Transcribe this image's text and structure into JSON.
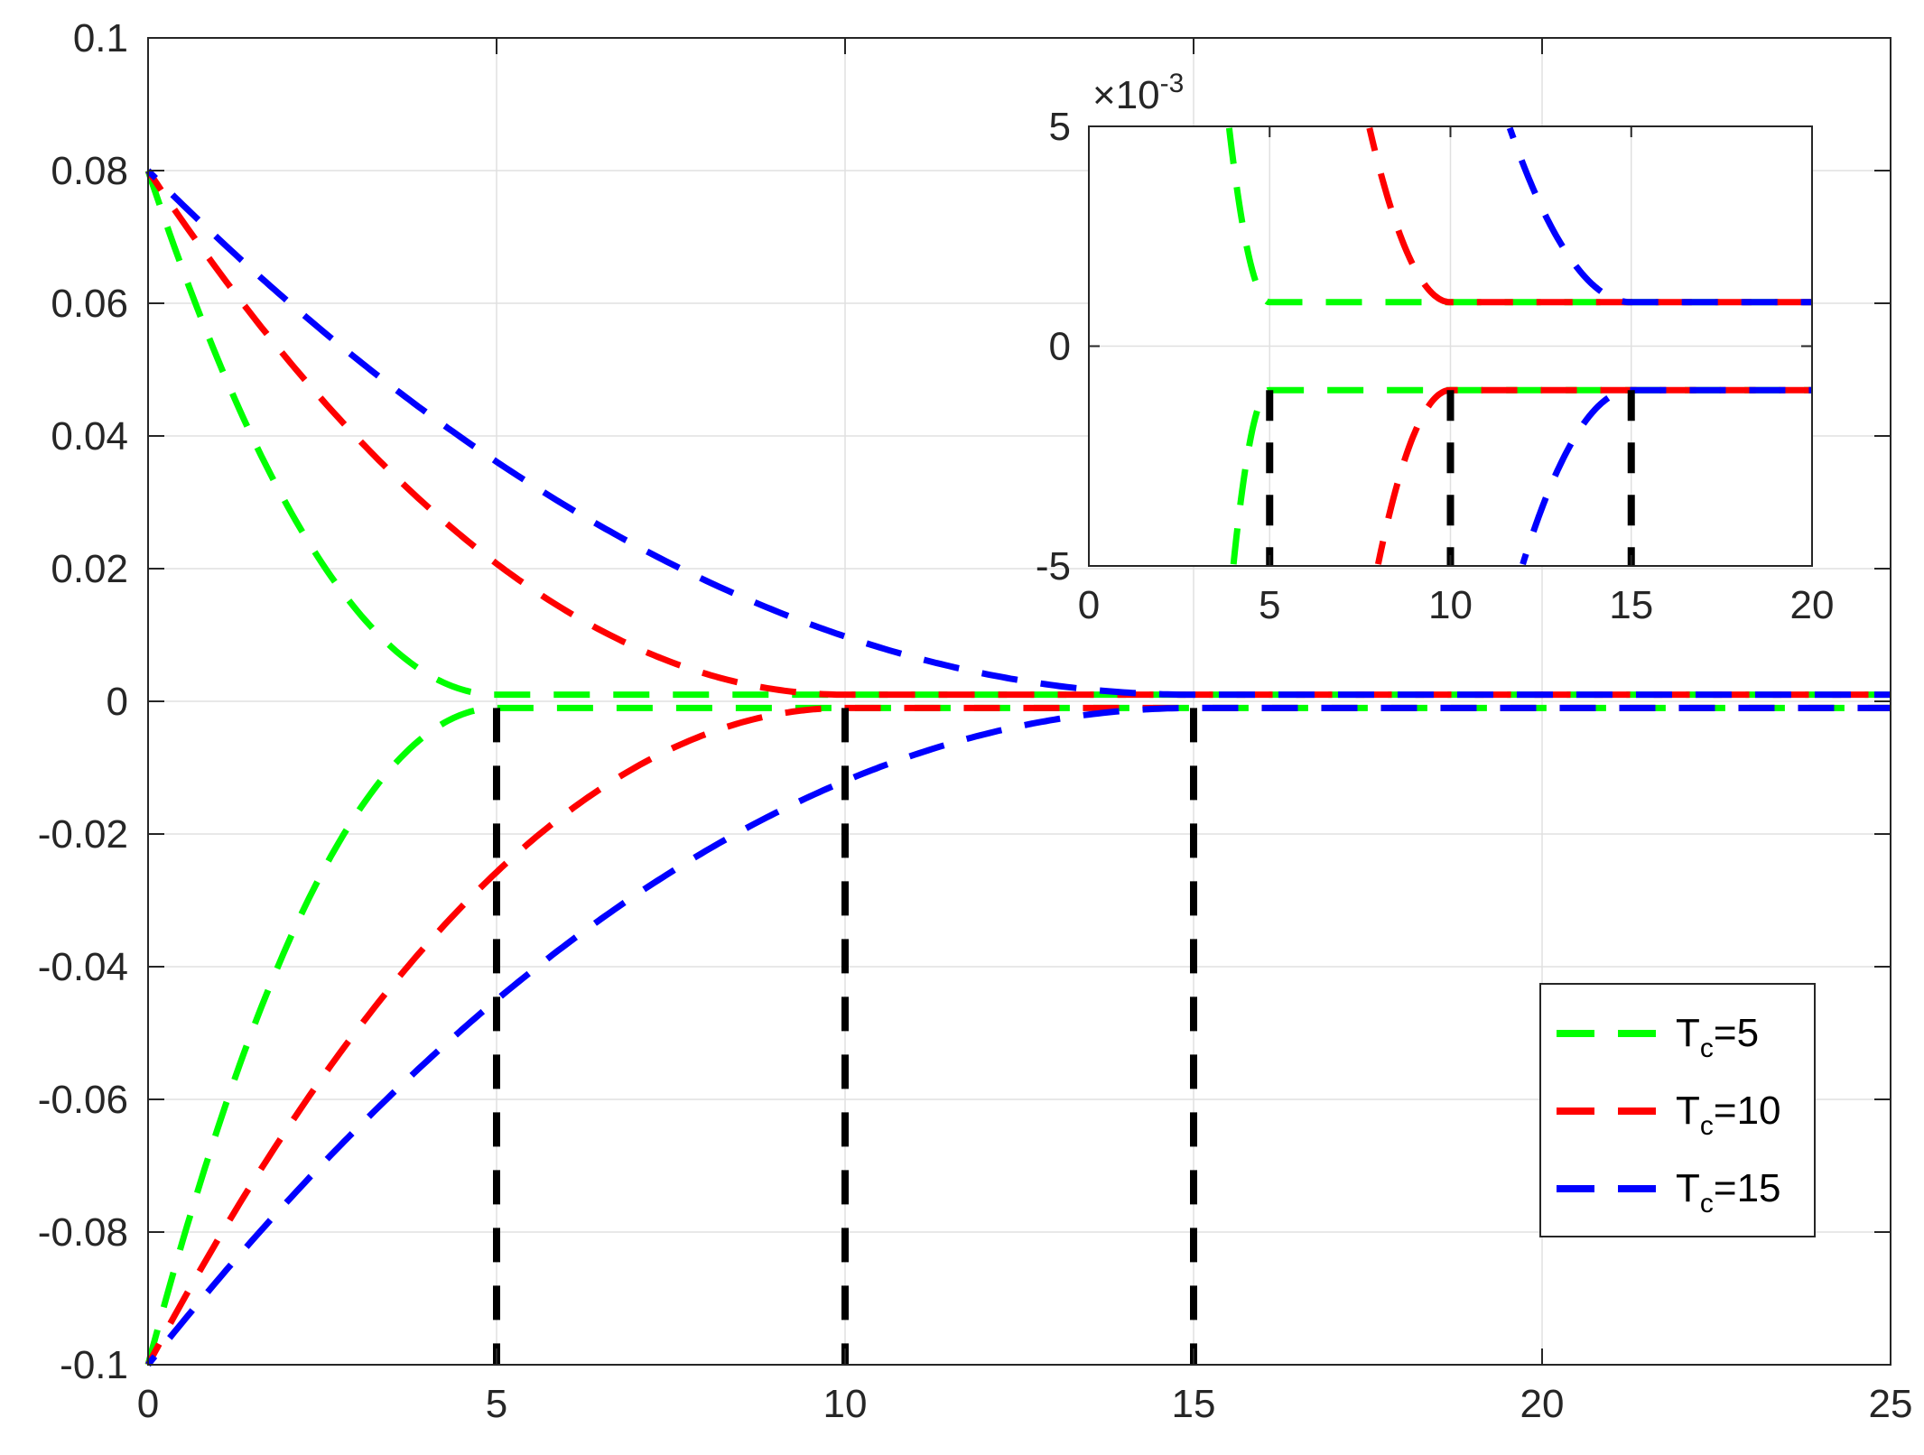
{
  "chart_data": [
    {
      "type": "line",
      "xlim": [
        0,
        25
      ],
      "ylim": [
        -0.1,
        0.1
      ],
      "xticks": [
        0,
        5,
        10,
        15,
        20,
        25
      ],
      "xtick_labels": [
        "0",
        "5",
        "10",
        "15",
        "20",
        "25"
      ],
      "yticks": [
        -0.1,
        -0.08,
        -0.06,
        -0.04,
        -0.02,
        0,
        0.02,
        0.04,
        0.06,
        0.08,
        0.1
      ],
      "ytick_labels": [
        "-0.1",
        "-0.08",
        "-0.06",
        "-0.04",
        "-0.02",
        "0",
        "0.02",
        "0.04",
        "0.06",
        "0.08",
        "0.1"
      ],
      "grid": true,
      "legend_position": "bottom-right",
      "series": [
        {
          "name": "T_c=5",
          "Tc": 5,
          "color": "#00ff00",
          "start_upper": 0.08,
          "start_lower": -0.1,
          "steady": 0.001
        },
        {
          "name": "T_c=10",
          "Tc": 10,
          "color": "#ff0000",
          "start_upper": 0.08,
          "start_lower": -0.1,
          "steady": 0.001
        },
        {
          "name": "T_c=15",
          "Tc": 15,
          "color": "#0000ff",
          "start_upper": 0.08,
          "start_lower": -0.1,
          "steady": 0.001
        }
      ],
      "vertical_markers": {
        "x": [
          5,
          10,
          15
        ],
        "color": "#000000",
        "style": "dashed"
      }
    },
    {
      "type": "line",
      "inset": true,
      "xlim": [
        0,
        20
      ],
      "ylim": [
        -0.005,
        0.005
      ],
      "xticks": [
        0,
        5,
        10,
        15,
        20
      ],
      "xtick_labels": [
        "0",
        "5",
        "10",
        "15",
        "20"
      ],
      "yticks": [
        -0.005,
        0,
        0.005
      ],
      "ytick_labels": [
        "-5",
        "0",
        "5"
      ],
      "exponent_label": {
        "base": "×10",
        "exponent": "-3"
      },
      "grid": true
    }
  ],
  "legend": {
    "entries": [
      {
        "main": "T",
        "sub": "c",
        "rest": "=5",
        "color": "#00ff00"
      },
      {
        "main": "T",
        "sub": "c",
        "rest": "=10",
        "color": "#ff0000"
      },
      {
        "main": "T",
        "sub": "c",
        "rest": "=15",
        "color": "#0000ff"
      }
    ]
  }
}
